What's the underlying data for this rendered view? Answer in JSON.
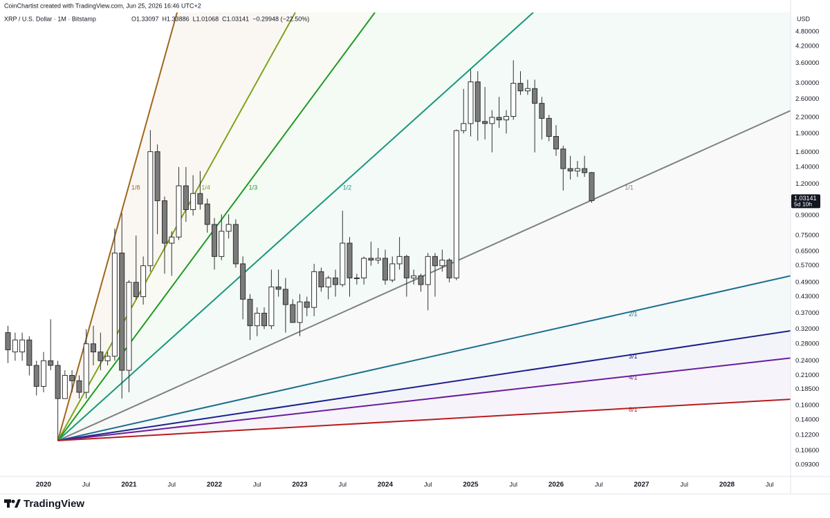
{
  "header": {
    "credit": "CoinChartist created with TradingView.com, Jun 25, 2026 16:46 UTC+2",
    "symbol": "XRP / U.S. Dollar · 1M · Bitstamp",
    "legend": [
      "O1.33097",
      "H1.33886",
      "L1.01068",
      "C1.03141",
      "−0.29948 (−22.50%)"
    ]
  },
  "footer": "TradingView",
  "chart_data": {
    "type": "candlestick",
    "currency": "USD",
    "countdown": "5d 10h",
    "up_color": "#ffffff",
    "down_color": "#7b7b7b",
    "outline_color": "#2f2f2f",
    "log_scale": true,
    "x": [
      2019.583,
      2019.667,
      2019.75,
      2019.833,
      2019.917,
      2020,
      2020.083,
      2020.167,
      2020.25,
      2020.333,
      2020.417,
      2020.5,
      2020.583,
      2020.667,
      2020.75,
      2020.833,
      2020.917,
      2021,
      2021.083,
      2021.167,
      2021.25,
      2021.333,
      2021.417,
      2021.5,
      2021.583,
      2021.667,
      2021.75,
      2021.833,
      2021.917,
      2022,
      2022.083,
      2022.167,
      2022.25,
      2022.333,
      2022.417,
      2022.5,
      2022.583,
      2022.667,
      2022.75,
      2022.833,
      2022.917,
      2023,
      2023.083,
      2023.167,
      2023.25,
      2023.333,
      2023.417,
      2023.5,
      2023.583,
      2023.667,
      2023.75,
      2023.833,
      2023.917,
      2024,
      2024.083,
      2024.167,
      2024.25,
      2024.333,
      2024.417,
      2024.5,
      2024.583,
      2024.667,
      2024.75,
      2024.833,
      2024.917,
      2025,
      2025.083,
      2025.167,
      2025.25,
      2025.333,
      2025.417,
      2025.5,
      2025.583,
      2025.667,
      2025.75,
      2025.833,
      2025.917,
      2026,
      2026.083,
      2026.167,
      2026.25,
      2026.333,
      2026.417
    ],
    "open": [
      0.31,
      0.26,
      0.26,
      0.29,
      0.23,
      0.19,
      0.24,
      0.23,
      0.17,
      0.21,
      0.2,
      0.18,
      0.28,
      0.26,
      0.24,
      0.25,
      0.64,
      0.22,
      0.49,
      0.43,
      0.57,
      1.61,
      1.03,
      0.7,
      0.74,
      1.18,
      0.95,
      1.1,
      1.0,
      0.83,
      0.62,
      0.78,
      0.83,
      0.58,
      0.42,
      0.33,
      0.37,
      0.33,
      0.47,
      0.46,
      0.4,
      0.34,
      0.41,
      0.39,
      0.54,
      0.47,
      0.51,
      0.48,
      0.7,
      0.51,
      0.51,
      0.61,
      0.6,
      0.61,
      0.5,
      0.58,
      0.62,
      0.51,
      0.52,
      0.48,
      0.62,
      0.57,
      0.6,
      0.51,
      1.95,
      2.08,
      3.04,
      2.12,
      2.08,
      2.2,
      2.15,
      2.22,
      3.0,
      2.8,
      2.86,
      2.5,
      2.18,
      1.85,
      1.65,
      1.38,
      1.35,
      1.38,
      1.33097
    ],
    "high": [
      0.33,
      0.31,
      0.31,
      0.3,
      0.24,
      0.26,
      0.35,
      0.24,
      0.22,
      0.22,
      0.21,
      0.32,
      0.33,
      0.31,
      0.26,
      0.8,
      0.92,
      0.5,
      0.75,
      0.62,
      1.96,
      1.72,
      1.07,
      0.78,
      1.4,
      1.4,
      1.3,
      1.35,
      1.05,
      0.88,
      0.91,
      0.91,
      0.87,
      0.62,
      0.44,
      0.39,
      0.39,
      0.55,
      0.55,
      0.51,
      0.42,
      0.44,
      0.43,
      0.58,
      0.56,
      0.52,
      0.55,
      0.94,
      0.74,
      0.53,
      0.62,
      0.71,
      0.67,
      0.66,
      0.62,
      0.74,
      0.63,
      0.55,
      0.53,
      0.64,
      0.64,
      0.66,
      0.61,
      1.97,
      2.85,
      3.4,
      3.35,
      2.9,
      2.35,
      2.65,
      2.35,
      3.7,
      3.35,
      3.1,
      3.1,
      2.65,
      2.25,
      2.05,
      1.7,
      1.55,
      1.48,
      1.55,
      1.33886
    ],
    "low": [
      0.235,
      0.24,
      0.24,
      0.21,
      0.175,
      0.18,
      0.22,
      0.116,
      0.17,
      0.18,
      0.17,
      0.17,
      0.23,
      0.22,
      0.23,
      0.24,
      0.17,
      0.18,
      0.42,
      0.4,
      0.54,
      0.76,
      0.53,
      0.52,
      0.72,
      0.85,
      0.9,
      0.95,
      0.77,
      0.55,
      0.6,
      0.73,
      0.56,
      0.35,
      0.29,
      0.3,
      0.32,
      0.32,
      0.43,
      0.31,
      0.34,
      0.3,
      0.36,
      0.36,
      0.45,
      0.42,
      0.43,
      0.47,
      0.43,
      0.48,
      0.48,
      0.57,
      0.58,
      0.48,
      0.49,
      0.55,
      0.43,
      0.48,
      0.45,
      0.38,
      0.43,
      0.54,
      0.49,
      0.5,
      1.9,
      1.85,
      1.78,
      1.8,
      1.6,
      2.0,
      1.9,
      2.15,
      2.7,
      2.7,
      1.6,
      1.8,
      1.77,
      1.55,
      1.13,
      1.25,
      1.28,
      1.28,
      1.01068
    ],
    "close": [
      0.265,
      0.29,
      0.29,
      0.23,
      0.19,
      0.24,
      0.23,
      0.17,
      0.21,
      0.2,
      0.18,
      0.28,
      0.26,
      0.24,
      0.25,
      0.64,
      0.22,
      0.49,
      0.43,
      0.57,
      1.61,
      1.03,
      0.7,
      0.74,
      1.18,
      0.95,
      1.1,
      1.0,
      0.83,
      0.62,
      0.78,
      0.83,
      0.58,
      0.42,
      0.33,
      0.37,
      0.33,
      0.47,
      0.46,
      0.4,
      0.34,
      0.41,
      0.39,
      0.54,
      0.47,
      0.51,
      0.48,
      0.7,
      0.51,
      0.51,
      0.61,
      0.6,
      0.61,
      0.5,
      0.58,
      0.62,
      0.51,
      0.52,
      0.48,
      0.62,
      0.57,
      0.6,
      0.51,
      1.95,
      2.08,
      3.04,
      2.12,
      2.08,
      2.2,
      2.15,
      2.22,
      3.0,
      2.8,
      2.86,
      2.5,
      2.18,
      1.85,
      1.65,
      1.38,
      1.35,
      1.38,
      1.33,
      1.03141
    ],
    "xlim": [
      2019.49,
      2028.745
    ],
    "ylim": [
      0.0836,
      5.72
    ],
    "xticks": [
      2020,
      {
        "value": 2020.5,
        "label": "Jul"
      },
      2021,
      {
        "value": 2021.5,
        "label": "Jul"
      },
      2022,
      {
        "value": 2022.5,
        "label": "Jul"
      },
      2023,
      {
        "value": 2023.5,
        "label": "Jul"
      },
      2024,
      {
        "value": 2024.5,
        "label": "Jul"
      },
      2025,
      {
        "value": 2025.5,
        "label": "Jul"
      },
      2026,
      {
        "value": 2026.5,
        "label": "Jul"
      },
      2027,
      {
        "value": 2027.5,
        "label": "Jul"
      },
      2028,
      {
        "value": 2028.5,
        "label": "Jul"
      }
    ],
    "yticks": [
      {
        "value": 4.8,
        "label": "4.80000"
      },
      {
        "value": 4.2,
        "label": "4.20000"
      },
      {
        "value": 3.6,
        "label": "3.60000"
      },
      {
        "value": 3.0,
        "label": "3.00000"
      },
      {
        "value": 2.6,
        "label": "2.60000"
      },
      {
        "value": 2.2,
        "label": "2.20000"
      },
      {
        "value": 1.9,
        "label": "1.90000"
      },
      {
        "value": 1.6,
        "label": "1.60000"
      },
      {
        "value": 1.4,
        "label": "1.40000"
      },
      {
        "value": 1.2,
        "label": "1.20000"
      },
      {
        "value": 0.9,
        "label": "0.90000"
      },
      {
        "value": 0.75,
        "label": "0.75000"
      },
      {
        "value": 0.65,
        "label": "0.65000"
      },
      {
        "value": 0.57,
        "label": "0.57000"
      },
      {
        "value": 0.49,
        "label": "0.49000"
      },
      {
        "value": 0.43,
        "label": "0.43000"
      },
      {
        "value": 0.37,
        "label": "0.37000"
      },
      {
        "value": 0.32,
        "label": "0.32000"
      },
      {
        "value": 0.28,
        "label": "0.28000"
      },
      {
        "value": 0.24,
        "label": "0.24000"
      },
      {
        "value": 0.21,
        "label": "0.21000"
      },
      {
        "value": 0.185,
        "label": "0.18500"
      },
      {
        "value": 0.16,
        "label": "0.16000"
      },
      {
        "value": 0.14,
        "label": "0.14000"
      },
      {
        "value": 0.122,
        "label": "0.12200"
      },
      {
        "value": 0.106,
        "label": "0.10600"
      },
      {
        "value": 0.093,
        "label": "0.09300"
      }
    ],
    "fan": {
      "origin": {
        "x": 2020.167,
        "y": 0.116
      },
      "lines": [
        {
          "label": "1/8",
          "color": "#a0661a",
          "end": {
            "x": 2021.563,
            "y": 5.72
          }
        },
        {
          "label": "1/4",
          "color": "#7fa31a",
          "end": {
            "x": 2022.947,
            "y": 5.72
          }
        },
        {
          "label": "1/3",
          "color": "#1e9a24",
          "end": {
            "x": 2023.879,
            "y": 5.72
          }
        },
        {
          "label": "1/2",
          "color": "#16987e",
          "end": {
            "x": 2025.733,
            "y": 5.72
          }
        },
        {
          "label": "1/1",
          "color": "#808080",
          "end": {
            "x": 2028.745,
            "y": 2.34
          }
        },
        {
          "label": "2/1",
          "color": "#1a6e8c",
          "end": {
            "x": 2028.745,
            "y": 0.52
          }
        },
        {
          "label": "3/1",
          "color": "#1b1f8a",
          "end": {
            "x": 2028.745,
            "y": 0.315
          }
        },
        {
          "label": "4/1",
          "color": "#6a1b9a",
          "end": {
            "x": 2028.745,
            "y": 0.246
          }
        },
        {
          "label": "8/1",
          "color": "#b71c1c",
          "end": {
            "x": 2028.745,
            "y": 0.169
          }
        }
      ]
    }
  }
}
